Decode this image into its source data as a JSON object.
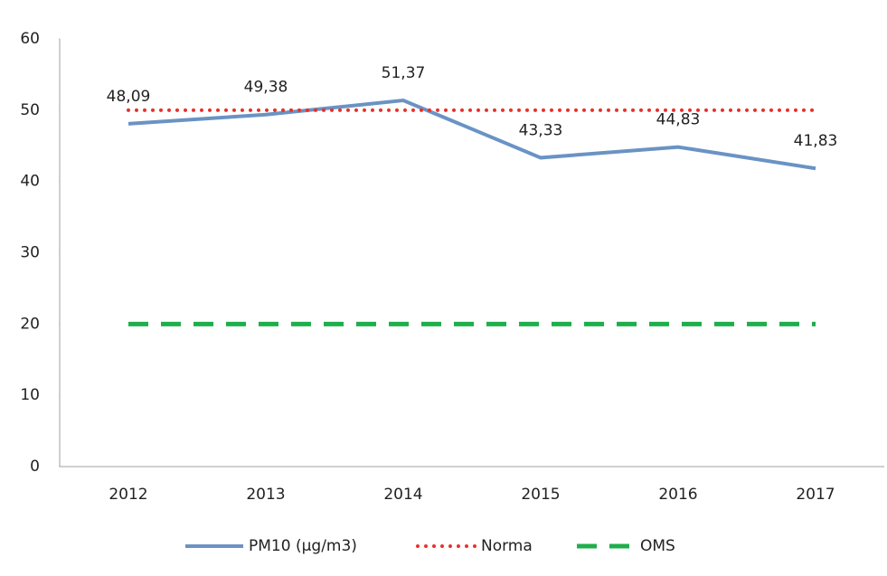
{
  "chart_data": {
    "type": "line",
    "categories": [
      "2012",
      "2013",
      "2014",
      "2015",
      "2016",
      "2017"
    ],
    "series": [
      {
        "name": "PM10 (µg/m3)",
        "color": "#6a93c4",
        "style": "solid",
        "values": [
          48.09,
          49.38,
          51.37,
          43.33,
          44.83,
          41.83
        ],
        "value_labels": [
          "48,09",
          "49,38",
          "51,37",
          "43,33",
          "44,83",
          "41,83"
        ]
      },
      {
        "name": "Norma",
        "color": "#e8322a",
        "style": "dotted",
        "values": [
          50,
          50,
          50,
          50,
          50,
          50
        ]
      },
      {
        "name": "OMS",
        "color": "#1eaf4b",
        "style": "dashed",
        "values": [
          20,
          20,
          20,
          20,
          20,
          20
        ]
      }
    ],
    "ylim": [
      0,
      60
    ],
    "yticks": [
      0,
      10,
      20,
      30,
      40,
      50,
      60
    ],
    "grid": false,
    "legend": "bottom"
  }
}
